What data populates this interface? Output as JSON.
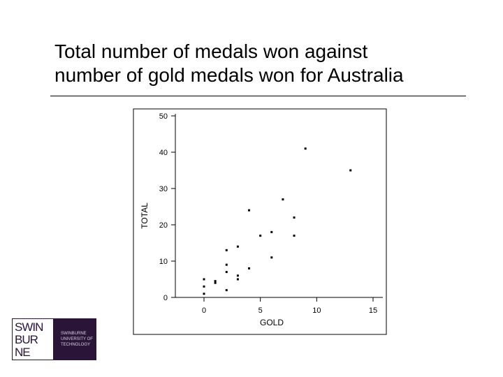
{
  "slide": {
    "title_line1": "Total number of medals won against",
    "title_line2": "number of gold medals won for Australia"
  },
  "logo": {
    "word1": "SWIN",
    "word2": "BUR",
    "word3": "NE",
    "sub1": "SWINBURNE",
    "sub2": "UNIVERSITY OF",
    "sub3": "TECHNOLOGY",
    "color_bg": "#2a1538"
  },
  "chart_data": {
    "type": "scatter",
    "title": "",
    "xlabel": "GOLD",
    "ylabel": "TOTAL",
    "xlim": [
      -1.5,
      15
    ],
    "ylim": [
      -1,
      51
    ],
    "xticks": [
      0,
      5,
      10,
      15
    ],
    "yticks": [
      0,
      10,
      20,
      30,
      40,
      50
    ],
    "grid": false,
    "points": [
      {
        "x": 0,
        "y": 1
      },
      {
        "x": 0,
        "y": 3
      },
      {
        "x": 0,
        "y": 5
      },
      {
        "x": 1,
        "y": 4
      },
      {
        "x": 1,
        "y": 4.5
      },
      {
        "x": 2,
        "y": 2
      },
      {
        "x": 2,
        "y": 7
      },
      {
        "x": 2,
        "y": 9
      },
      {
        "x": 2,
        "y": 13
      },
      {
        "x": 3,
        "y": 5
      },
      {
        "x": 3,
        "y": 6
      },
      {
        "x": 3,
        "y": 14
      },
      {
        "x": 4,
        "y": 8
      },
      {
        "x": 4,
        "y": 24
      },
      {
        "x": 5,
        "y": 17
      },
      {
        "x": 6,
        "y": 11
      },
      {
        "x": 6,
        "y": 18
      },
      {
        "x": 7,
        "y": 27
      },
      {
        "x": 8,
        "y": 17
      },
      {
        "x": 8,
        "y": 22
      },
      {
        "x": 9,
        "y": 41
      },
      {
        "x": 13,
        "y": 35
      }
    ]
  }
}
